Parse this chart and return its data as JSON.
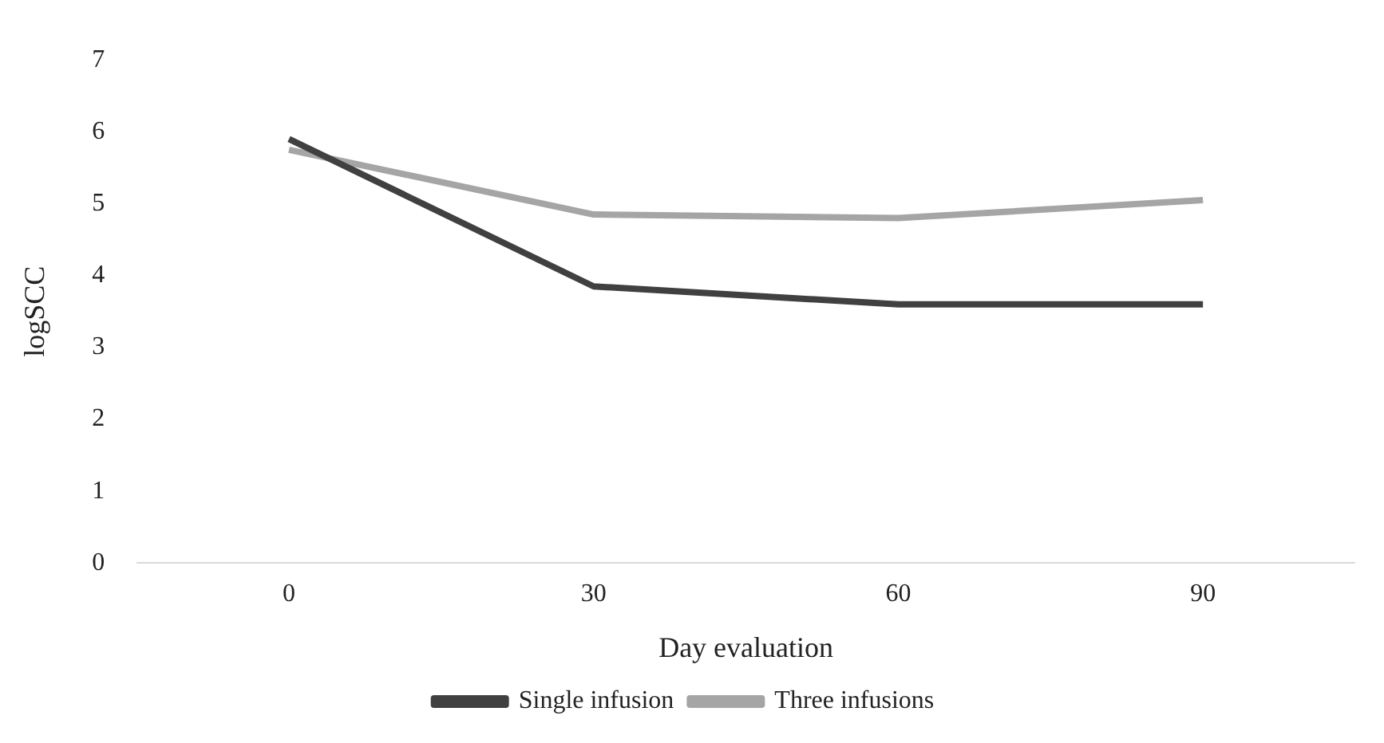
{
  "chart_data": {
    "type": "line",
    "xlabel": "Day evaluation",
    "ylabel": "logSCC",
    "categories": [
      "0",
      "30",
      "60",
      "90"
    ],
    "series": [
      {
        "name": "Single infusion",
        "color": "#404040",
        "values": [
          5.9,
          3.85,
          3.6,
          3.6
        ]
      },
      {
        "name": "Three infusions",
        "color": "#a5a5a5",
        "values": [
          5.75,
          4.85,
          4.8,
          5.05
        ]
      }
    ],
    "ylim": [
      0,
      7
    ],
    "yticks": [
      0,
      1,
      2,
      3,
      4,
      5,
      6,
      7
    ],
    "grid": false,
    "legend": "bottom",
    "marker": "none",
    "line_style": "solid"
  }
}
